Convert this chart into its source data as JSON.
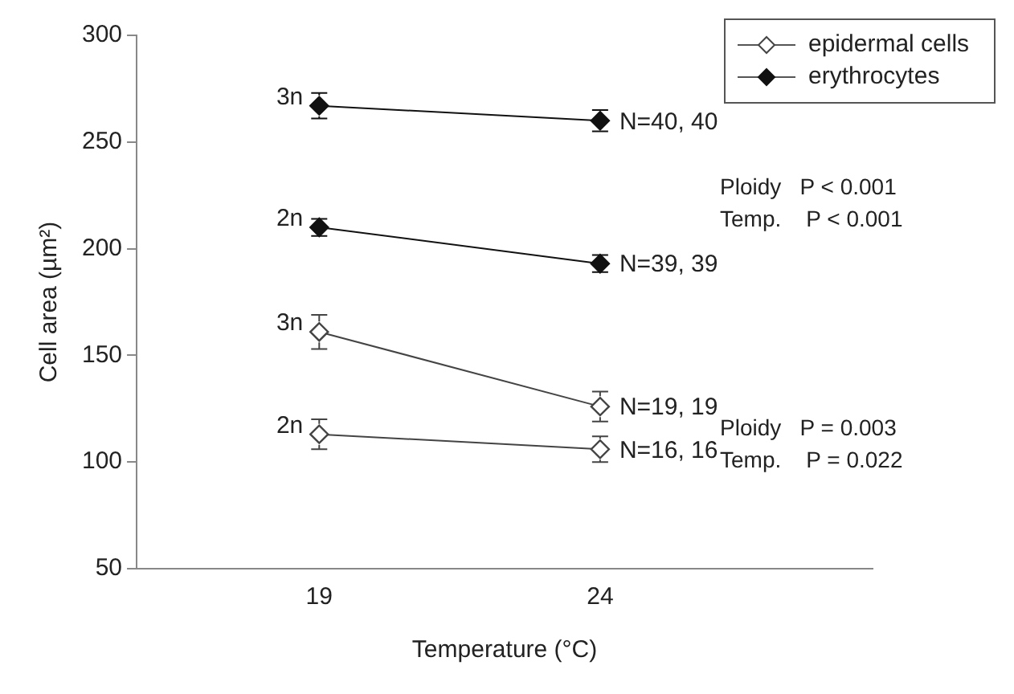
{
  "chart_data": {
    "type": "line",
    "xlabel": "Temperature (°C)",
    "ylabel": "Cell area (µm²)",
    "categories": [
      "19",
      "24"
    ],
    "ylim": [
      50,
      300
    ],
    "yticks": [
      50,
      100,
      150,
      200,
      250,
      300
    ],
    "grid": false,
    "legend": "top right",
    "marker": "diamond",
    "line_style": "solid",
    "series": [
      {
        "name": "epidermal cells",
        "color": "#444444",
        "values": [
          161,
          126
        ],
        "errors": [
          8,
          7
        ]
      },
      {
        "color": "#444444",
        "values": [
          113,
          106
        ],
        "errors": [
          7,
          6
        ]
      },
      {
        "name": "erythrocytes",
        "color": "#111111",
        "values": [
          267,
          260
        ],
        "errors": [
          6,
          5
        ]
      },
      {
        "color": "#111111",
        "values": [
          210,
          193
        ],
        "errors": [
          4,
          4
        ]
      }
    ],
    "annotations": [
      {
        "text": "3n",
        "x": "19",
        "y": 267
      },
      {
        "text": "2n",
        "x": "19",
        "y": 210
      },
      {
        "text": "3n",
        "x": "19",
        "y": 161
      },
      {
        "text": "2n",
        "x": "19",
        "y": 113
      },
      {
        "text": "N=40, 40",
        "x": "24",
        "y": 260
      },
      {
        "text": "N=39, 39",
        "x": "24",
        "y": 193
      },
      {
        "text": "N=19, 19",
        "x": "24",
        "y": 126
      },
      {
        "text": "N=16, 16",
        "x": "24",
        "y": 106
      },
      "Ploidy   P < 0.001",
      "Temp.    P < 0.001",
      "Ploidy   P = 0.003",
      "Temp.    P = 0.022"
    ]
  }
}
